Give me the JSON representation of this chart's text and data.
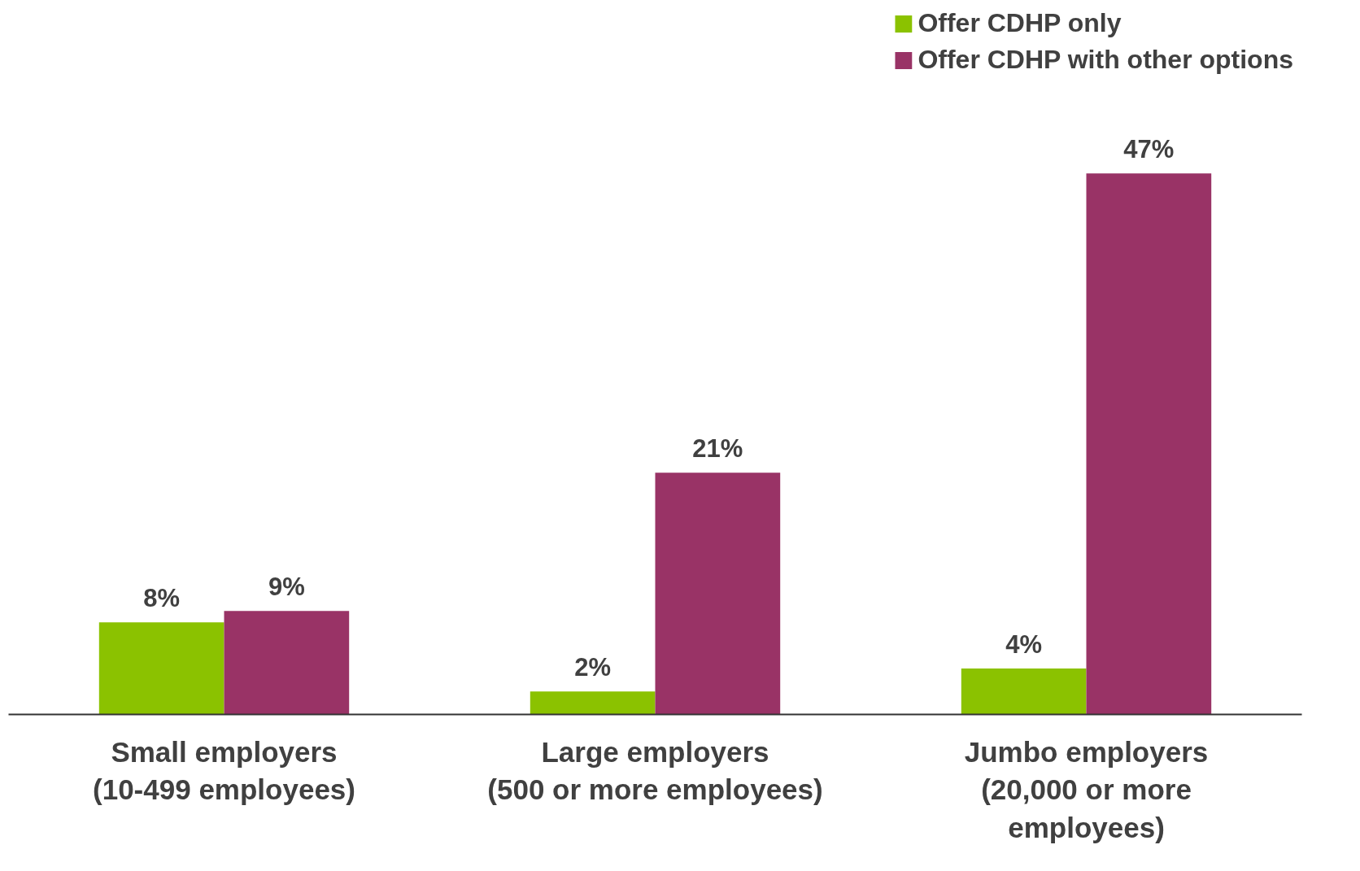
{
  "chart_data": {
    "type": "bar",
    "categories": [
      "Small employers\n(10-499 employees)",
      "Large employers\n(500 or more employees)",
      "Jumbo employers\n(20,000 or more\nemployees)"
    ],
    "series": [
      {
        "name": "Offer CDHP only",
        "color": "#8bc200",
        "values": [
          8,
          2,
          4
        ],
        "value_labels": [
          "8%",
          "2%",
          "4%"
        ]
      },
      {
        "name": "Offer CDHP with other options",
        "color": "#993366",
        "values": [
          9,
          21,
          47
        ],
        "value_labels": [
          "9%",
          "21%",
          "47%"
        ]
      }
    ],
    "legend": "top right"
  }
}
